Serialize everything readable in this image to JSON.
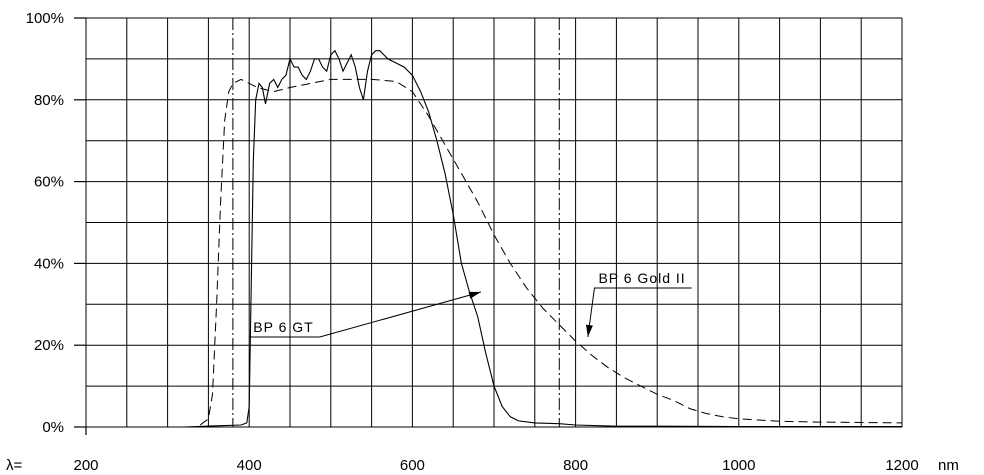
{
  "chart_data": {
    "type": "line",
    "title": "",
    "xlabel": "",
    "ylabel": "",
    "x_prefix": "λ=",
    "x_unit": "nm",
    "xlim": [
      200,
      1200
    ],
    "ylim": [
      0,
      100
    ],
    "x_ticks": [
      {
        "value": 200,
        "label": "200"
      },
      {
        "value": 400,
        "label": "400"
      },
      {
        "value": 600,
        "label": "600"
      },
      {
        "value": 800,
        "label": "800"
      },
      {
        "value": 1000,
        "label": "1000"
      },
      {
        "value": 1200,
        "label": "1200"
      }
    ],
    "y_ticks": [
      {
        "value": 0,
        "label": "0%"
      },
      {
        "value": 20,
        "label": "20%"
      },
      {
        "value": 40,
        "label": "40%"
      },
      {
        "value": 60,
        "label": "60%"
      },
      {
        "value": 80,
        "label": "80%"
      },
      {
        "value": 100,
        "label": "100%"
      }
    ],
    "grid": true,
    "x_grid_step": 50,
    "y_grid_step": 10,
    "reference_lines_x": [
      380,
      780
    ],
    "series": [
      {
        "name": "BP 6 GT",
        "style": "solid",
        "points": [
          [
            320,
            0
          ],
          [
            360,
            0.3
          ],
          [
            390,
            0.5
          ],
          [
            397,
            1
          ],
          [
            400,
            5
          ],
          [
            403,
            40
          ],
          [
            405,
            65
          ],
          [
            408,
            80
          ],
          [
            412,
            84
          ],
          [
            416,
            83
          ],
          [
            420,
            79
          ],
          [
            425,
            84
          ],
          [
            430,
            85
          ],
          [
            435,
            83
          ],
          [
            440,
            85
          ],
          [
            445,
            86
          ],
          [
            450,
            90
          ],
          [
            455,
            88
          ],
          [
            460,
            88
          ],
          [
            465,
            86
          ],
          [
            470,
            85
          ],
          [
            475,
            87
          ],
          [
            480,
            90
          ],
          [
            485,
            90
          ],
          [
            490,
            88
          ],
          [
            495,
            87
          ],
          [
            500,
            91
          ],
          [
            505,
            92
          ],
          [
            510,
            90
          ],
          [
            515,
            87
          ],
          [
            520,
            89
          ],
          [
            525,
            91
          ],
          [
            530,
            88
          ],
          [
            535,
            83
          ],
          [
            540,
            80
          ],
          [
            545,
            87
          ],
          [
            550,
            91
          ],
          [
            555,
            92
          ],
          [
            560,
            92
          ],
          [
            565,
            91
          ],
          [
            570,
            90
          ],
          [
            580,
            89
          ],
          [
            590,
            88
          ],
          [
            600,
            86
          ],
          [
            610,
            82
          ],
          [
            620,
            77
          ],
          [
            630,
            70
          ],
          [
            640,
            62
          ],
          [
            650,
            52
          ],
          [
            660,
            40
          ],
          [
            670,
            33
          ],
          [
            680,
            27
          ],
          [
            690,
            18
          ],
          [
            700,
            10
          ],
          [
            710,
            5
          ],
          [
            720,
            2.5
          ],
          [
            730,
            1.5
          ],
          [
            750,
            1
          ],
          [
            780,
            0.8
          ],
          [
            800,
            0.5
          ],
          [
            850,
            0.2
          ],
          [
            900,
            0.2
          ],
          [
            1000,
            0.1
          ],
          [
            1100,
            0.1
          ],
          [
            1200,
            0.1
          ]
        ]
      },
      {
        "name": "BP 6 Gold II",
        "style": "dashed",
        "points": [
          [
            340,
            0.5
          ],
          [
            350,
            2
          ],
          [
            355,
            8
          ],
          [
            360,
            30
          ],
          [
            365,
            55
          ],
          [
            370,
            75
          ],
          [
            375,
            82
          ],
          [
            380,
            84
          ],
          [
            390,
            85
          ],
          [
            400,
            84
          ],
          [
            410,
            83
          ],
          [
            430,
            82
          ],
          [
            450,
            83
          ],
          [
            500,
            85
          ],
          [
            550,
            85
          ],
          [
            580,
            84.5
          ],
          [
            600,
            82
          ],
          [
            620,
            76
          ],
          [
            640,
            69
          ],
          [
            660,
            62
          ],
          [
            680,
            55
          ],
          [
            700,
            47
          ],
          [
            720,
            40
          ],
          [
            740,
            34
          ],
          [
            760,
            29
          ],
          [
            780,
            25
          ],
          [
            800,
            21
          ],
          [
            820,
            17.5
          ],
          [
            840,
            14.5
          ],
          [
            860,
            12
          ],
          [
            880,
            10
          ],
          [
            900,
            8
          ],
          [
            920,
            6.5
          ],
          [
            940,
            4.5
          ],
          [
            960,
            3.3
          ],
          [
            980,
            2.5
          ],
          [
            1000,
            2
          ],
          [
            1050,
            1.4
          ],
          [
            1100,
            1.2
          ],
          [
            1150,
            1.1
          ],
          [
            1200,
            1
          ]
        ]
      }
    ],
    "annotations": [
      {
        "series": "BP 6 GT",
        "text": "BP 6 GT",
        "label_at": [
          405,
          22
        ],
        "arrow_to": [
          684,
          33
        ]
      },
      {
        "series": "BP 6 Gold II",
        "text": "BP 6 Gold II",
        "label_at": [
          828,
          34
        ],
        "arrow_to": [
          815,
          22
        ]
      }
    ]
  }
}
